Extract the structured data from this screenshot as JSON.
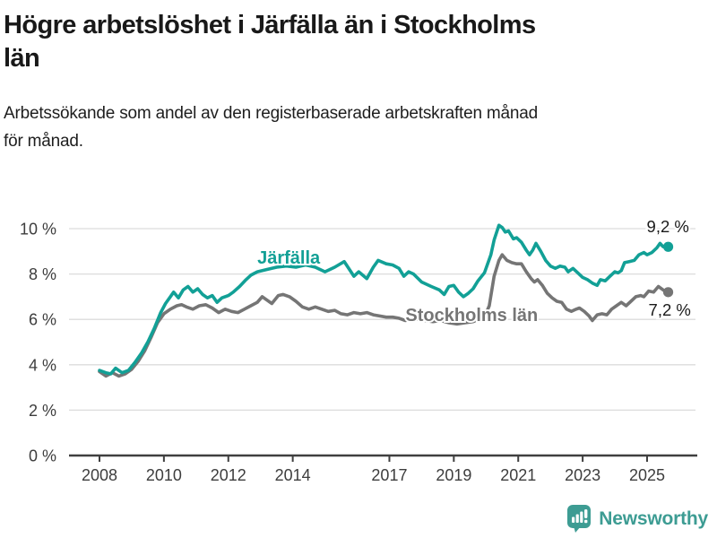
{
  "header": {
    "title_lines": [
      "Högre arbetslöshet i Järfälla än i Stockholms",
      "län"
    ],
    "subtitle_lines": [
      "Arbetssökande som andel av den registerbaserade arbetskraften månad",
      "för månad."
    ]
  },
  "chart_data": {
    "type": "line",
    "unit": "%",
    "title": "",
    "xlabel": "",
    "ylabel": "",
    "xlim": [
      2007.05,
      2026.3
    ],
    "ylim": [
      0,
      10.6
    ],
    "grid": "horizontal",
    "x_ticks": [
      2008,
      2010,
      2012,
      2014,
      2017,
      2019,
      2021,
      2023,
      2025
    ],
    "y_ticks": [
      0,
      2,
      4,
      6,
      8,
      10
    ],
    "y_tick_suffix": " %",
    "colors": {
      "grid": "#dcdcdc",
      "axis": "#3f3f3f",
      "tick_label": "#3d3d3d",
      "end_label": "#1a1a1a"
    },
    "series": [
      {
        "name": "Stockholms län",
        "color": "#757575",
        "end_label": "7,2 %",
        "end_value": 7.2,
        "label_pos": {
          "x": 2017.5,
          "y": 5.93
        },
        "end_label_offset": {
          "dx": -20,
          "dy": 26
        },
        "points": [
          [
            2008.0,
            3.7
          ],
          [
            2008.2,
            3.5
          ],
          [
            2008.4,
            3.65
          ],
          [
            2008.6,
            3.5
          ],
          [
            2008.8,
            3.6
          ],
          [
            2009.0,
            3.8
          ],
          [
            2009.2,
            4.15
          ],
          [
            2009.4,
            4.6
          ],
          [
            2009.6,
            5.2
          ],
          [
            2009.8,
            5.85
          ],
          [
            2010.0,
            6.25
          ],
          [
            2010.2,
            6.45
          ],
          [
            2010.4,
            6.6
          ],
          [
            2010.55,
            6.65
          ],
          [
            2010.7,
            6.55
          ],
          [
            2010.9,
            6.45
          ],
          [
            2011.1,
            6.6
          ],
          [
            2011.3,
            6.65
          ],
          [
            2011.5,
            6.5
          ],
          [
            2011.7,
            6.3
          ],
          [
            2011.9,
            6.45
          ],
          [
            2012.1,
            6.35
          ],
          [
            2012.3,
            6.3
          ],
          [
            2012.5,
            6.45
          ],
          [
            2012.7,
            6.6
          ],
          [
            2012.9,
            6.75
          ],
          [
            2013.05,
            7.0
          ],
          [
            2013.2,
            6.85
          ],
          [
            2013.35,
            6.7
          ],
          [
            2013.55,
            7.05
          ],
          [
            2013.7,
            7.1
          ],
          [
            2013.9,
            7.0
          ],
          [
            2014.1,
            6.8
          ],
          [
            2014.3,
            6.55
          ],
          [
            2014.5,
            6.45
          ],
          [
            2014.7,
            6.55
          ],
          [
            2014.9,
            6.45
          ],
          [
            2015.1,
            6.35
          ],
          [
            2015.3,
            6.4
          ],
          [
            2015.5,
            6.25
          ],
          [
            2015.7,
            6.2
          ],
          [
            2015.9,
            6.3
          ],
          [
            2016.1,
            6.25
          ],
          [
            2016.3,
            6.3
          ],
          [
            2016.5,
            6.2
          ],
          [
            2016.7,
            6.15
          ],
          [
            2016.9,
            6.1
          ],
          [
            2017.1,
            6.1
          ],
          [
            2017.3,
            6.05
          ],
          [
            2017.5,
            5.95
          ],
          [
            2017.7,
            6.05
          ],
          [
            2017.9,
            6.0
          ],
          [
            2018.1,
            5.95
          ],
          [
            2018.35,
            5.9
          ],
          [
            2018.6,
            5.95
          ],
          [
            2018.85,
            5.85
          ],
          [
            2019.1,
            5.8
          ],
          [
            2019.35,
            5.85
          ],
          [
            2019.6,
            5.9
          ],
          [
            2019.8,
            6.0
          ],
          [
            2019.95,
            6.1
          ],
          [
            2020.1,
            6.6
          ],
          [
            2020.25,
            7.9
          ],
          [
            2020.4,
            8.6
          ],
          [
            2020.5,
            8.85
          ],
          [
            2020.65,
            8.6
          ],
          [
            2020.8,
            8.5
          ],
          [
            2020.95,
            8.45
          ],
          [
            2021.1,
            8.45
          ],
          [
            2021.25,
            8.1
          ],
          [
            2021.4,
            7.8
          ],
          [
            2021.5,
            7.65
          ],
          [
            2021.6,
            7.75
          ],
          [
            2021.75,
            7.5
          ],
          [
            2021.9,
            7.15
          ],
          [
            2022.05,
            6.95
          ],
          [
            2022.2,
            6.8
          ],
          [
            2022.35,
            6.75
          ],
          [
            2022.5,
            6.45
          ],
          [
            2022.65,
            6.35
          ],
          [
            2022.8,
            6.45
          ],
          [
            2022.9,
            6.5
          ],
          [
            2023.05,
            6.35
          ],
          [
            2023.2,
            6.15
          ],
          [
            2023.3,
            5.95
          ],
          [
            2023.45,
            6.2
          ],
          [
            2023.6,
            6.25
          ],
          [
            2023.75,
            6.2
          ],
          [
            2023.9,
            6.45
          ],
          [
            2024.05,
            6.6
          ],
          [
            2024.2,
            6.75
          ],
          [
            2024.35,
            6.6
          ],
          [
            2024.5,
            6.8
          ],
          [
            2024.65,
            7.0
          ],
          [
            2024.8,
            7.05
          ],
          [
            2024.9,
            7.0
          ],
          [
            2025.05,
            7.25
          ],
          [
            2025.2,
            7.2
          ],
          [
            2025.35,
            7.45
          ],
          [
            2025.5,
            7.3
          ],
          [
            2025.6,
            7.2
          ]
        ]
      },
      {
        "name": "Järfälla",
        "color": "#12a096",
        "end_label": "9,2 %",
        "end_value": 9.2,
        "label_pos": {
          "x": 2012.9,
          "y": 8.45
        },
        "end_label_offset": {
          "dx": -22,
          "dy": -16
        },
        "points": [
          [
            2008.0,
            3.75
          ],
          [
            2008.2,
            3.65
          ],
          [
            2008.35,
            3.6
          ],
          [
            2008.5,
            3.85
          ],
          [
            2008.7,
            3.65
          ],
          [
            2008.9,
            3.75
          ],
          [
            2009.1,
            4.1
          ],
          [
            2009.3,
            4.5
          ],
          [
            2009.5,
            5.0
          ],
          [
            2009.7,
            5.6
          ],
          [
            2009.9,
            6.3
          ],
          [
            2010.05,
            6.7
          ],
          [
            2010.2,
            7.0
          ],
          [
            2010.3,
            7.2
          ],
          [
            2010.45,
            6.95
          ],
          [
            2010.6,
            7.3
          ],
          [
            2010.75,
            7.45
          ],
          [
            2010.9,
            7.2
          ],
          [
            2011.05,
            7.35
          ],
          [
            2011.2,
            7.1
          ],
          [
            2011.35,
            6.95
          ],
          [
            2011.5,
            7.05
          ],
          [
            2011.65,
            6.75
          ],
          [
            2011.8,
            6.95
          ],
          [
            2012.0,
            7.05
          ],
          [
            2012.15,
            7.2
          ],
          [
            2012.35,
            7.45
          ],
          [
            2012.55,
            7.75
          ],
          [
            2012.7,
            7.95
          ],
          [
            2012.9,
            8.1
          ],
          [
            2013.2,
            8.2
          ],
          [
            2013.5,
            8.3
          ],
          [
            2013.8,
            8.35
          ],
          [
            2014.1,
            8.3
          ],
          [
            2014.4,
            8.4
          ],
          [
            2014.7,
            8.3
          ],
          [
            2015.0,
            8.1
          ],
          [
            2015.3,
            8.3
          ],
          [
            2015.6,
            8.55
          ],
          [
            2015.9,
            7.9
          ],
          [
            2016.05,
            8.1
          ],
          [
            2016.3,
            7.8
          ],
          [
            2016.5,
            8.3
          ],
          [
            2016.65,
            8.6
          ],
          [
            2016.9,
            8.45
          ],
          [
            2017.1,
            8.4
          ],
          [
            2017.3,
            8.25
          ],
          [
            2017.45,
            7.9
          ],
          [
            2017.6,
            8.1
          ],
          [
            2017.75,
            8.0
          ],
          [
            2018.0,
            7.65
          ],
          [
            2018.3,
            7.45
          ],
          [
            2018.55,
            7.3
          ],
          [
            2018.7,
            7.1
          ],
          [
            2018.85,
            7.45
          ],
          [
            2019.0,
            7.5
          ],
          [
            2019.15,
            7.2
          ],
          [
            2019.3,
            7.0
          ],
          [
            2019.45,
            7.15
          ],
          [
            2019.6,
            7.35
          ],
          [
            2019.75,
            7.7
          ],
          [
            2019.95,
            8.05
          ],
          [
            2020.15,
            8.85
          ],
          [
            2020.25,
            9.5
          ],
          [
            2020.4,
            10.15
          ],
          [
            2020.5,
            10.05
          ],
          [
            2020.6,
            9.85
          ],
          [
            2020.7,
            9.9
          ],
          [
            2020.85,
            9.55
          ],
          [
            2020.95,
            9.6
          ],
          [
            2021.1,
            9.4
          ],
          [
            2021.25,
            9.05
          ],
          [
            2021.35,
            8.85
          ],
          [
            2021.45,
            9.05
          ],
          [
            2021.55,
            9.35
          ],
          [
            2021.7,
            9.0
          ],
          [
            2021.85,
            8.6
          ],
          [
            2022.0,
            8.35
          ],
          [
            2022.15,
            8.25
          ],
          [
            2022.3,
            8.35
          ],
          [
            2022.45,
            8.3
          ],
          [
            2022.55,
            8.1
          ],
          [
            2022.7,
            8.25
          ],
          [
            2022.85,
            8.05
          ],
          [
            2023.0,
            7.85
          ],
          [
            2023.15,
            7.75
          ],
          [
            2023.3,
            7.6
          ],
          [
            2023.45,
            7.5
          ],
          [
            2023.55,
            7.75
          ],
          [
            2023.7,
            7.7
          ],
          [
            2023.85,
            7.9
          ],
          [
            2024.0,
            8.1
          ],
          [
            2024.1,
            8.05
          ],
          [
            2024.2,
            8.15
          ],
          [
            2024.3,
            8.5
          ],
          [
            2024.45,
            8.55
          ],
          [
            2024.6,
            8.6
          ],
          [
            2024.75,
            8.85
          ],
          [
            2024.9,
            8.95
          ],
          [
            2025.0,
            8.85
          ],
          [
            2025.15,
            8.95
          ],
          [
            2025.3,
            9.15
          ],
          [
            2025.4,
            9.35
          ],
          [
            2025.5,
            9.2
          ],
          [
            2025.6,
            9.2
          ]
        ]
      }
    ]
  },
  "footer": {
    "brand": "Newsworthy",
    "brand_color": "#3d9c93",
    "logo_icon": "bar-chart-speech-bubble"
  }
}
